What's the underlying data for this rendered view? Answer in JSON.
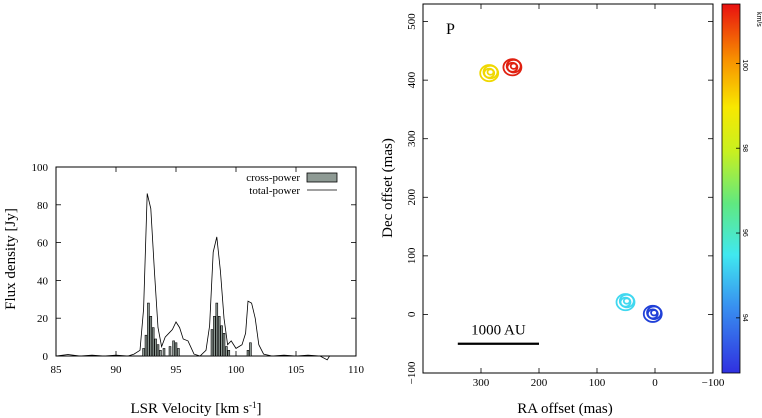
{
  "chart_data": [
    {
      "type": "bar",
      "panel": "spectrum",
      "xlabel": "LSR Velocity [km s",
      "xlabel_sup": "-1",
      "xlabel_end": "]",
      "ylabel": "Flux density [Jy]",
      "xlim": [
        85,
        110
      ],
      "ylim": [
        0,
        100
      ],
      "xticks": [
        85,
        90,
        95,
        100,
        105,
        110
      ],
      "yticks": [
        0,
        20,
        40,
        60,
        80,
        100
      ],
      "legend": {
        "position": "top-right",
        "cross_label": "cross-power",
        "total_label": "total-power"
      },
      "series": [
        {
          "name": "cross-power",
          "kind": "bar",
          "x": [
            92.3,
            92.5,
            92.7,
            92.9,
            93.1,
            93.3,
            93.5,
            93.7,
            94.0,
            94.5,
            94.8,
            95.0,
            95.2,
            98.0,
            98.2,
            98.4,
            98.6,
            98.8,
            99.0,
            99.2,
            99.4,
            101.0,
            101.2
          ],
          "values": [
            4,
            11,
            28,
            21,
            15,
            9,
            6,
            3,
            4,
            5,
            8,
            7,
            4,
            14,
            21,
            28,
            21,
            16,
            12,
            5,
            3,
            3,
            7
          ]
        },
        {
          "name": "total-power",
          "kind": "line",
          "x": [
            85,
            86,
            87,
            88,
            89,
            90,
            91,
            91.5,
            92,
            92.3,
            92.6,
            92.9,
            93.2,
            93.5,
            93.8,
            94.1,
            94.4,
            94.7,
            95.0,
            95.3,
            95.6,
            96.0,
            96.5,
            97.0,
            97.5,
            97.8,
            98.1,
            98.4,
            98.7,
            99.0,
            99.3,
            99.6,
            100.0,
            100.5,
            100.8,
            101.0,
            101.3,
            101.6,
            101.9,
            102.3,
            103,
            104,
            105,
            106,
            107,
            107.6,
            107.8,
            108,
            109,
            110
          ],
          "values": [
            0,
            0.8,
            0,
            0.5,
            0,
            0.5,
            0,
            1,
            3,
            25,
            86,
            78,
            45,
            15,
            5,
            10,
            12,
            14,
            18,
            15,
            9,
            8,
            1,
            0,
            3,
            16,
            55,
            63,
            45,
            20,
            6,
            8,
            4,
            6,
            12,
            29,
            28,
            20,
            6,
            1,
            0,
            0.5,
            0,
            0.5,
            0,
            -2,
            0,
            0,
            0,
            0
          ]
        }
      ]
    },
    {
      "type": "scatter",
      "panel": "map",
      "label": "P",
      "xlabel": "RA offset (mas)",
      "ylabel": "Dec offset (mas)",
      "xlim": [
        400,
        -100
      ],
      "ylim": [
        -100,
        530
      ],
      "xticks": [
        300,
        200,
        100,
        0,
        -100
      ],
      "yticks": [
        -100,
        0,
        100,
        200,
        300,
        400,
        500
      ],
      "scale_bar": {
        "label": "1000 AU",
        "from_x": 340,
        "to_x": 200,
        "y": -50
      },
      "colorbar": {
        "unit": "km/s",
        "range": [
          92.7,
          101.4
        ],
        "ticks": [
          94,
          96,
          98,
          100
        ]
      },
      "spots": [
        {
          "x": 285,
          "y": 413,
          "velocity": 98.4,
          "color": "#f0d800"
        },
        {
          "x": 245,
          "y": 423,
          "velocity": 100.7,
          "color": "#e02010"
        },
        {
          "x": 50,
          "y": 22,
          "velocity": 94.8,
          "color": "#40d8f0"
        },
        {
          "x": 3,
          "y": 2,
          "velocity": 93.2,
          "color": "#2040d8"
        }
      ]
    }
  ]
}
